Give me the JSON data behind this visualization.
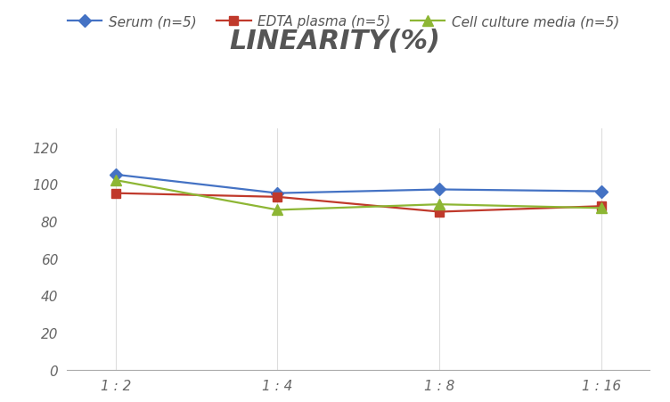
{
  "title": "LINEARITY(%)",
  "x_labels": [
    "1 : 2",
    "1 : 4",
    "1 : 8",
    "1 : 16"
  ],
  "x_positions": [
    0,
    1,
    2,
    3
  ],
  "series": [
    {
      "label": "Serum (n=5)",
      "values": [
        105,
        95,
        97,
        96
      ],
      "color": "#4472C4",
      "marker": "D",
      "marker_size": 7
    },
    {
      "label": "EDTA plasma (n=5)",
      "values": [
        95,
        93,
        85,
        88
      ],
      "color": "#C0392B",
      "marker": "s",
      "marker_size": 7
    },
    {
      "label": "Cell culture media (n=5)",
      "values": [
        102,
        86,
        89,
        87
      ],
      "color": "#8DB634",
      "marker": "^",
      "marker_size": 8
    }
  ],
  "ylim": [
    0,
    130
  ],
  "yticks": [
    0,
    20,
    40,
    60,
    80,
    100,
    120
  ],
  "grid_color": "#DDDDDD",
  "background_color": "#FFFFFF",
  "title_fontsize": 22,
  "title_color": "#555555",
  "legend_fontsize": 11,
  "tick_fontsize": 11
}
